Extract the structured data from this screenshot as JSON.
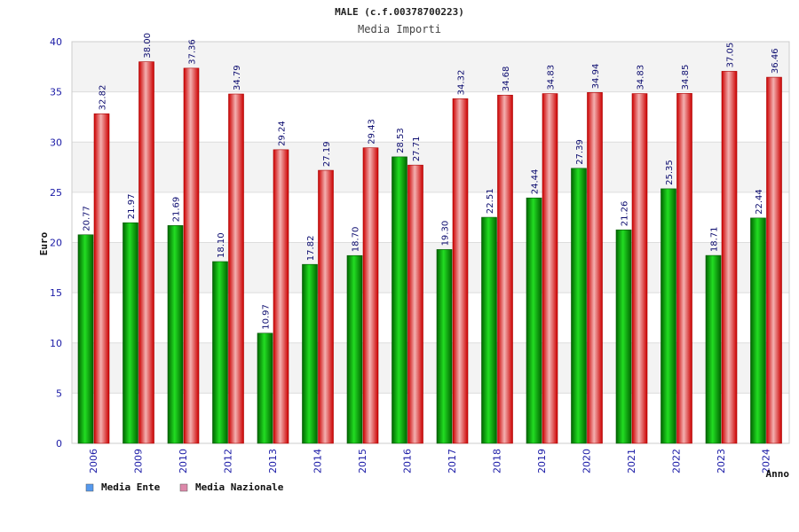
{
  "chart_data": {
    "type": "bar",
    "title": "MALE (c.f.00378700223)",
    "subtitle": "Media Importi",
    "xlabel": "Anno",
    "ylabel": "Euro",
    "ylim": [
      0,
      40
    ],
    "yticks": [
      "0",
      "5",
      "10",
      "15",
      "20",
      "25",
      "30",
      "35",
      "40"
    ],
    "grid": true,
    "legend_position": "bottom-left",
    "categories": [
      "2006",
      "2009",
      "2010",
      "2012",
      "2013",
      "2014",
      "2015",
      "2016",
      "2017",
      "2018",
      "2019",
      "2020",
      "2021",
      "2022",
      "2023",
      "2024"
    ],
    "series": [
      {
        "name": "Media Ente",
        "color": "#00aa00",
        "legend_color": "#5599ee",
        "values": [
          20.77,
          21.97,
          21.69,
          18.1,
          10.97,
          17.82,
          18.7,
          28.53,
          19.3,
          22.51,
          24.44,
          27.39,
          21.26,
          25.35,
          18.71,
          22.44
        ],
        "labels": [
          "20.77",
          "21.97",
          "21.69",
          "18.10",
          "10.97",
          "17.82",
          "18.70",
          "28.53",
          "19.30",
          "22.51",
          "24.44",
          "27.39",
          "21.26",
          "25.35",
          "18.71",
          "22.44"
        ]
      },
      {
        "name": "Media Nazionale",
        "color": "#ee2222",
        "legend_color": "#dd88aa",
        "values": [
          32.82,
          38.0,
          37.36,
          34.79,
          29.24,
          27.19,
          29.43,
          27.71,
          34.32,
          34.68,
          34.83,
          34.94,
          34.83,
          34.85,
          37.05,
          36.46
        ],
        "labels": [
          "32.82",
          "38.00",
          "37.36",
          "34.79",
          "29.24",
          "27.19",
          "29.43",
          "27.71",
          "34.32",
          "34.68",
          "34.83",
          "34.94",
          "34.83",
          "34.85",
          "37.05",
          "36.46"
        ]
      }
    ]
  }
}
